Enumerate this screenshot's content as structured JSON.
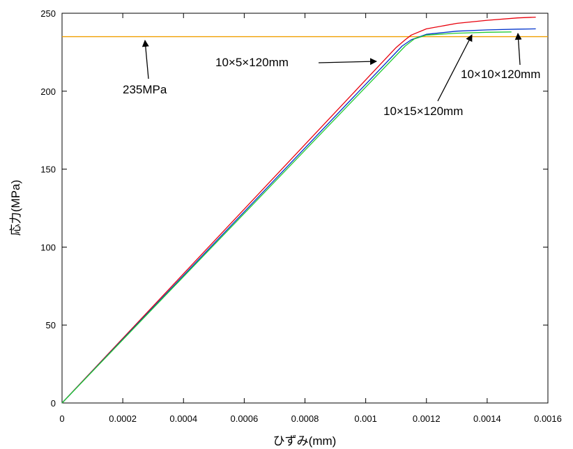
{
  "chart_data": {
    "type": "line",
    "xlabel": "ひずみ(mm)",
    "ylabel": "応力(MPa)",
    "xlim": [
      0,
      0.0016
    ],
    "ylim": [
      0,
      250
    ],
    "xticks": [
      0,
      0.0002,
      0.0004,
      0.0006,
      0.0008,
      0.001,
      0.0012,
      0.0014,
      0.0016
    ],
    "xtick_labels": [
      "0",
      "0.0002",
      "0.0004",
      "0.0006",
      "0.0008",
      "0.001",
      "0.0012",
      "0.0014",
      "0.0016"
    ],
    "yticks": [
      0,
      50,
      100,
      150,
      200,
      250
    ],
    "ytick_labels": [
      "0",
      "50",
      "100",
      "150",
      "200",
      "250"
    ],
    "grid": false,
    "reference_line": {
      "y": 235,
      "color": "#f0a000",
      "label": "235MPa"
    },
    "series": [
      {
        "name": "10×5×120mm",
        "color": "#e8000b",
        "x": [
          0,
          0.0011,
          0.00113,
          0.00115,
          0.0012,
          0.0013,
          0.0014,
          0.0015,
          0.00156
        ],
        "y": [
          0,
          228,
          233,
          236,
          240,
          243.5,
          245.5,
          247,
          247.5
        ]
      },
      {
        "name": "10×10×120mm",
        "color": "#0033cc",
        "x": [
          0,
          0.00112,
          0.00115,
          0.0012,
          0.0013,
          0.0014,
          0.0015,
          0.00156
        ],
        "y": [
          0,
          229,
          233,
          236.5,
          238.5,
          239.3,
          239.8,
          240
        ]
      },
      {
        "name": "10×15×120mm",
        "color": "#22cc33",
        "x": [
          0,
          0.00113,
          0.00116,
          0.0012,
          0.0013,
          0.0014,
          0.00148
        ],
        "y": [
          0,
          229,
          233.5,
          236,
          237.2,
          237.8,
          238
        ]
      }
    ],
    "annotations": [
      {
        "text": "235MPa",
        "series": "ref"
      },
      {
        "text": "10×5×120mm",
        "series": "10×5×120mm"
      },
      {
        "text": "10×10×120mm",
        "series": "10×10×120mm"
      },
      {
        "text": "10×15×120mm",
        "series": "10×15×120mm"
      }
    ]
  }
}
